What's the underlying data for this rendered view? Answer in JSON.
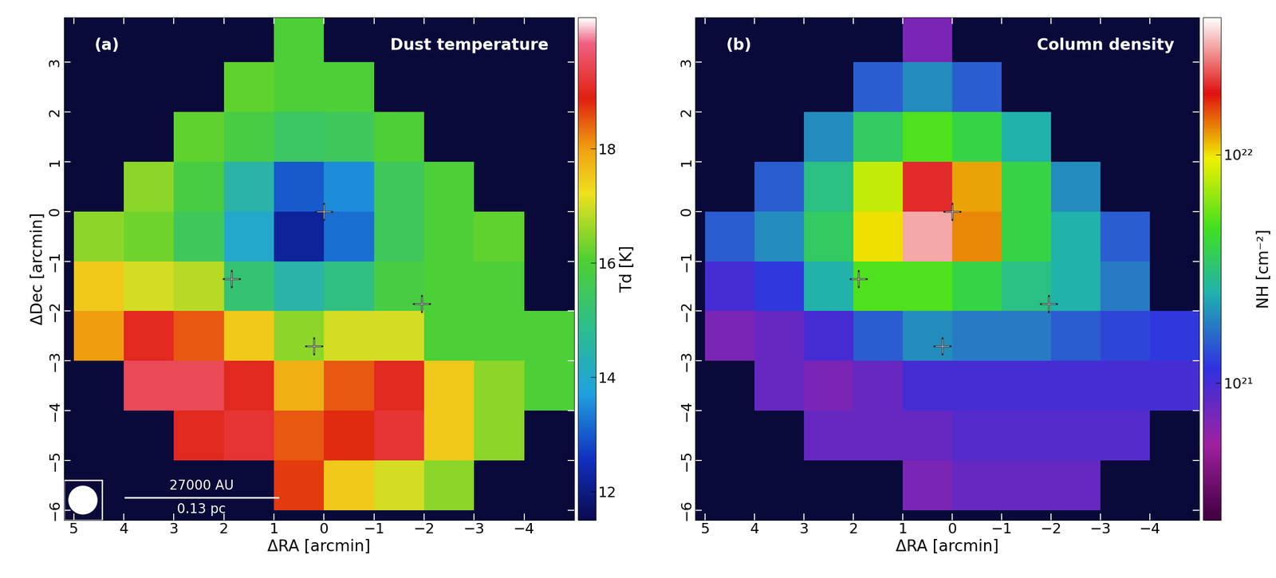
{
  "chart_data": [
    {
      "type": "heatmap",
      "panel_label": "(a)",
      "title": "Dust temperature",
      "xlabel": "ΔRA [arcmin]",
      "ylabel": "ΔDec [arcmin]",
      "xlim": [
        5.2,
        -5.0
      ],
      "ylim": [
        -6.2,
        3.9
      ],
      "xticks": [
        5,
        4,
        3,
        2,
        1,
        0,
        {
          "value": -1,
          "label": "−1"
        },
        {
          "value": -2,
          "label": "−2"
        },
        {
          "value": -3,
          "label": "−3"
        },
        {
          "value": -4,
          "label": "−4"
        }
      ],
      "yticks": [
        {
          "value": -6,
          "label": "−6"
        },
        {
          "value": -5,
          "label": "−5"
        },
        {
          "value": -4,
          "label": "−4"
        },
        {
          "value": -3,
          "label": "−3"
        },
        {
          "value": -2,
          "label": "−2"
        },
        {
          "value": -1,
          "label": "−1"
        },
        0,
        1,
        2,
        3
      ],
      "ra_edges": [
        5,
        4,
        3,
        2,
        1,
        0,
        -1,
        -2,
        -3,
        -4,
        -5
      ],
      "dec_edges": [
        4,
        3,
        2,
        1,
        0,
        -1,
        -2,
        -3,
        -4,
        -5,
        -6
      ],
      "cells": [
        [
          null,
          null,
          null,
          null,
          16.0,
          null,
          null,
          null,
          null,
          null
        ],
        [
          null,
          null,
          null,
          16.2,
          16.0,
          16.0,
          null,
          null,
          null,
          null
        ],
        [
          null,
          null,
          16.2,
          15.8,
          15.4,
          15.5,
          16.0,
          null,
          null,
          null
        ],
        [
          null,
          16.5,
          15.8,
          14.5,
          13.0,
          13.5,
          15.5,
          16.0,
          null,
          null
        ],
        [
          16.5,
          16.3,
          15.5,
          14.0,
          12.2,
          13.2,
          15.5,
          16.0,
          16.2,
          null
        ],
        [
          17.5,
          17.0,
          16.8,
          15.2,
          14.5,
          15.0,
          15.8,
          16.0,
          16.0,
          null
        ],
        [
          18.0,
          19.0,
          18.5,
          17.5,
          16.5,
          17.0,
          17.0,
          16.0,
          16.0,
          16.0
        ],
        [
          null,
          19.5,
          19.5,
          19.0,
          17.8,
          18.5,
          19.0,
          17.5,
          16.5,
          16.0
        ],
        [
          null,
          null,
          19.0,
          19.2,
          18.5,
          18.8,
          19.2,
          17.5,
          16.5,
          null
        ],
        [
          null,
          null,
          null,
          null,
          18.7,
          17.5,
          17.0,
          16.5,
          null,
          null
        ]
      ],
      "colorbar": {
        "label": "Td [K]",
        "range": [
          11.5,
          20.3
        ],
        "ticks": [
          12,
          14,
          16,
          18
        ]
      },
      "sources": {
        "ra": [
          0.0,
          1.85,
          -1.95,
          0.2
        ],
        "dec": [
          0.0,
          -1.35,
          -1.85,
          -2.7
        ]
      },
      "marker": "+",
      "scale_bar": [
        "27000 AU",
        "0.13 pc"
      ]
    },
    {
      "type": "heatmap",
      "panel_label": "(b)",
      "title": "Column density",
      "xlabel": "ΔRA [arcmin]",
      "xlim": [
        5.2,
        -5.0
      ],
      "ylim": [
        -6.2,
        3.9
      ],
      "xticks": [
        5,
        4,
        3,
        2,
        1,
        0,
        {
          "value": -1,
          "label": "−1"
        },
        {
          "value": -2,
          "label": "−2"
        },
        {
          "value": -3,
          "label": "−3"
        },
        {
          "value": -4,
          "label": "−4"
        }
      ],
      "yticks": [
        {
          "value": -6,
          "label": "−6"
        },
        {
          "value": -5,
          "label": "−5"
        },
        {
          "value": -4,
          "label": "−4"
        },
        {
          "value": -3,
          "label": "−3"
        },
        {
          "value": -2,
          "label": "−2"
        },
        {
          "value": -1,
          "label": "−1"
        },
        0,
        1,
        2,
        3
      ],
      "ra_edges": [
        5,
        4,
        3,
        2,
        1,
        0,
        -1,
        -2,
        -3,
        -4,
        -5
      ],
      "dec_edges": [
        4,
        3,
        2,
        1,
        0,
        -1,
        -2,
        -3,
        -4,
        -5,
        -6
      ],
      "cells": [
        [
          null,
          null,
          null,
          null,
          7e+20,
          null,
          null,
          null,
          null,
          null
        ],
        [
          null,
          null,
          null,
          1.5e+21,
          2e+21,
          1.5e+21,
          null,
          null,
          null,
          null
        ],
        [
          null,
          null,
          2e+21,
          3.5e+21,
          5e+21,
          4e+21,
          2.5e+21,
          null,
          null,
          null
        ],
        [
          null,
          1.5e+21,
          3e+21,
          8e+21,
          2e+22,
          1.2e+22,
          4e+21,
          2e+21,
          null,
          null
        ],
        [
          1.5e+21,
          2e+21,
          3.5e+21,
          1e+22,
          3e+22,
          1.3e+22,
          4e+21,
          2.5e+21,
          1.5e+21,
          null
        ],
        [
          1e+21,
          1.2e+21,
          2.5e+21,
          5e+21,
          5e+21,
          4e+21,
          3e+21,
          2.5e+21,
          1.8e+21,
          null
        ],
        [
          7e+20,
          8e+20,
          1e+21,
          1.5e+21,
          2e+21,
          1.8e+21,
          1.8e+21,
          1.5e+21,
          1.3e+21,
          1.2e+21
        ],
        [
          null,
          8e+20,
          7e+20,
          8e+20,
          1e+21,
          1e+21,
          1e+21,
          1e+21,
          1e+21,
          1e+21
        ],
        [
          null,
          null,
          8e+20,
          8e+20,
          8e+20,
          9e+20,
          9e+20,
          9e+20,
          9e+20,
          null
        ],
        [
          null,
          null,
          null,
          null,
          7e+20,
          8e+20,
          8e+20,
          8e+20,
          null,
          null
        ]
      ],
      "colorbar": {
        "label": "NH [cm⁻²]",
        "range": [
          2.5e+20,
          4e+22
        ],
        "log": true,
        "ticks": [
          {
            "value": 1e+21,
            "label": "10²¹"
          },
          {
            "value": 1e+22,
            "label": "10²²"
          }
        ]
      },
      "sources": {
        "ra": [
          0.0,
          1.9,
          -1.95,
          0.2
        ],
        "dec": [
          0.0,
          -1.35,
          -1.85,
          -2.7
        ]
      },
      "marker": "+"
    }
  ]
}
